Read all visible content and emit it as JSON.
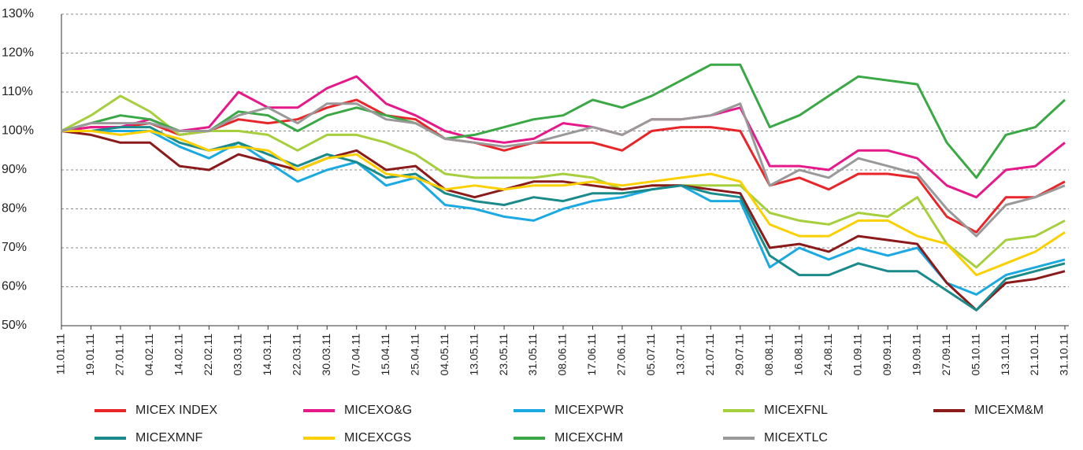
{
  "chart_data": {
    "type": "line",
    "categories": [
      "11.01.11",
      "19.01.11",
      "27.01.11",
      "04.02.11",
      "14.02.11",
      "22.02.11",
      "03.03.11",
      "14.03.11",
      "22.03.11",
      "30.03.11",
      "07.04.11",
      "15.04.11",
      "25.04.11",
      "04.05.11",
      "13.05.11",
      "23.05.11",
      "31.05.11",
      "08.06.11",
      "17.06.11",
      "27.06.11",
      "05.07.11",
      "13.07.11",
      "21.07.11",
      "29.07.11",
      "08.08.11",
      "16.08.11",
      "24.08.11",
      "01.09.11",
      "09.09.11",
      "19.09.11",
      "27.09.11",
      "05.10.11",
      "13.10.11",
      "21.10.11",
      "31.10.11"
    ],
    "series": [
      {
        "name": "MICEX INDEX",
        "color": "#e8262a",
        "values": [
          100,
          101,
          101,
          102,
          99,
          100,
          103,
          102,
          103,
          106,
          108,
          104,
          103,
          98,
          97,
          95,
          97,
          97,
          97,
          95,
          100,
          101,
          101,
          100,
          86,
          88,
          85,
          89,
          89,
          88,
          78,
          74,
          83,
          83,
          87
        ]
      },
      {
        "name": "MICEXO&G",
        "color": "#e6198a",
        "values": [
          100,
          101,
          101,
          103,
          100,
          101,
          110,
          106,
          106,
          111,
          114,
          107,
          104,
          100,
          98,
          97,
          98,
          102,
          101,
          99,
          103,
          103,
          104,
          106,
          91,
          91,
          90,
          95,
          95,
          93,
          86,
          83,
          90,
          91,
          97
        ]
      },
      {
        "name": "MICEXPWR",
        "color": "#1ba9e1",
        "values": [
          100,
          100,
          100,
          100,
          96,
          93,
          97,
          92,
          87,
          90,
          92,
          86,
          88,
          81,
          80,
          78,
          77,
          80,
          82,
          83,
          85,
          86,
          82,
          82,
          65,
          70,
          67,
          70,
          68,
          70,
          61,
          58,
          63,
          65,
          67
        ]
      },
      {
        "name": "MICEXFNL",
        "color": "#a6cf3e",
        "values": [
          100,
          104,
          109,
          105,
          99,
          100,
          100,
          99,
          95,
          99,
          99,
          97,
          94,
          89,
          88,
          88,
          88,
          89,
          88,
          85,
          86,
          86,
          86,
          86,
          79,
          77,
          76,
          79,
          78,
          83,
          71,
          65,
          72,
          73,
          77
        ]
      },
      {
        "name": "MICEXM&M",
        "color": "#8b1a1a",
        "values": [
          100,
          99,
          97,
          97,
          91,
          90,
          94,
          92,
          90,
          93,
          95,
          90,
          91,
          85,
          83,
          85,
          87,
          87,
          86,
          85,
          86,
          86,
          85,
          84,
          70,
          71,
          69,
          73,
          72,
          71,
          61,
          54,
          61,
          62,
          64
        ]
      },
      {
        "name": "MICEXMNF",
        "color": "#1a8a8a",
        "values": [
          100,
          100,
          101,
          101,
          97,
          95,
          97,
          94,
          91,
          94,
          92,
          88,
          89,
          84,
          82,
          81,
          83,
          82,
          84,
          84,
          85,
          86,
          84,
          83,
          68,
          63,
          63,
          66,
          64,
          64,
          59,
          54,
          62,
          64,
          66
        ]
      },
      {
        "name": "MICEXCGS",
        "color": "#fcd000",
        "values": [
          100,
          100,
          99,
          100,
          98,
          95,
          96,
          95,
          90,
          93,
          94,
          89,
          88,
          85,
          86,
          85,
          86,
          86,
          87,
          86,
          87,
          88,
          89,
          87,
          76,
          73,
          73,
          77,
          77,
          73,
          71,
          63,
          66,
          69,
          74
        ]
      },
      {
        "name": "MICEXCHM",
        "color": "#3aa845",
        "values": [
          100,
          102,
          104,
          103,
          100,
          100,
          105,
          104,
          100,
          104,
          106,
          104,
          102,
          98,
          99,
          101,
          103,
          104,
          108,
          106,
          109,
          113,
          117,
          117,
          101,
          104,
          109,
          114,
          113,
          112,
          97,
          88,
          99,
          101,
          108
        ]
      },
      {
        "name": "MICEXTLC",
        "color": "#999999",
        "values": [
          100,
          102,
          102,
          102,
          100,
          100,
          104,
          106,
          102,
          107,
          107,
          103,
          102,
          98,
          97,
          96,
          97,
          99,
          101,
          99,
          103,
          103,
          104,
          107,
          86,
          90,
          88,
          93,
          91,
          89,
          80,
          73,
          81,
          83,
          86
        ]
      }
    ],
    "ylim": [
      50,
      130
    ],
    "yticks": [
      {
        "value": 50,
        "label": "50%"
      },
      {
        "value": 60,
        "label": "60%"
      },
      {
        "value": 70,
        "label": "70%"
      },
      {
        "value": 80,
        "label": "80%"
      },
      {
        "value": 90,
        "label": "90%"
      },
      {
        "value": 100,
        "label": "100%"
      },
      {
        "value": 110,
        "label": "110%"
      },
      {
        "value": 120,
        "label": "120%"
      },
      {
        "value": 130,
        "label": "130%"
      }
    ],
    "grid": true
  }
}
